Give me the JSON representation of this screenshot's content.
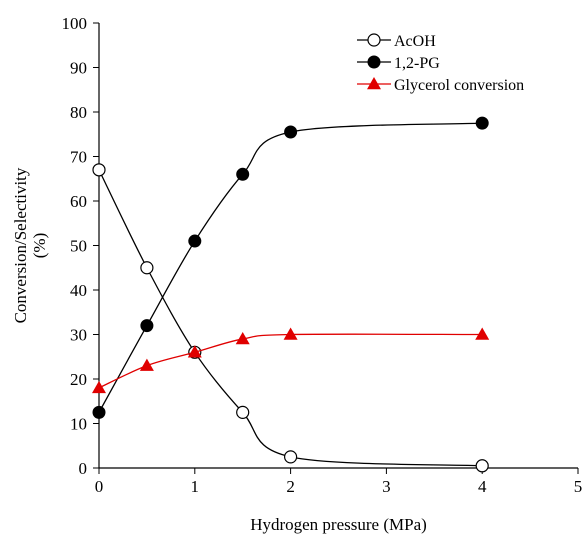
{
  "chart_data": {
    "type": "line",
    "xlabel": "Hydrogen pressure (MPa)",
    "ylabel": [
      "Conversion/Selectivity",
      "(%)"
    ],
    "xlim": [
      0,
      5
    ],
    "ylim": [
      0,
      100
    ],
    "xticks": [
      0,
      1,
      2,
      3,
      4,
      5
    ],
    "yticks": [
      0,
      10,
      20,
      30,
      40,
      50,
      60,
      70,
      80,
      90,
      100
    ],
    "grid": false,
    "legend_position": "top-right",
    "series": [
      {
        "name": "AcOH",
        "marker": "circle-open",
        "color": "#000000",
        "x": [
          0,
          0.5,
          1,
          1.5,
          2,
          4
        ],
        "y": [
          67,
          45,
          26,
          12.5,
          2.5,
          0.5
        ]
      },
      {
        "name": "1,2-PG",
        "marker": "circle-filled",
        "color": "#000000",
        "x": [
          0,
          0.5,
          1,
          1.5,
          2,
          4
        ],
        "y": [
          12.5,
          32,
          51,
          66,
          75.5,
          77.5
        ]
      },
      {
        "name": "Glycerol conversion",
        "marker": "triangle-filled",
        "color": "#e00000",
        "x": [
          0,
          0.5,
          1,
          1.5,
          2,
          4
        ],
        "y": [
          18,
          23,
          26,
          29,
          30,
          30
        ]
      }
    ]
  }
}
